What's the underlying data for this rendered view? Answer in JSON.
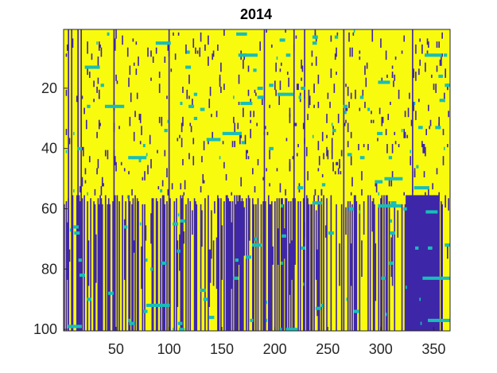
{
  "chart_data": {
    "type": "heatmap",
    "title": "2014",
    "xlabel": "",
    "ylabel": "",
    "xlim": [
      1,
      365
    ],
    "ylim": [
      1,
      100
    ],
    "y_reversed": true,
    "x_ticks": [
      50,
      100,
      150,
      200,
      250,
      300,
      350
    ],
    "y_ticks": [
      20,
      40,
      60,
      80,
      100
    ],
    "x_tick_labels": [
      "50",
      "100",
      "150",
      "200",
      "250",
      "300",
      "350"
    ],
    "y_tick_labels": [
      "20",
      "40",
      "60",
      "80",
      "100"
    ],
    "grid": false,
    "legend": "none",
    "values_encoding": "categorical 0 = dark blue, 1 = cyan, 2 = yellow",
    "colors": {
      "low": "#3e26a8",
      "mid": "#17beb9",
      "high": "#f9fb0e"
    },
    "region_summary": {
      "rows_1_to_56": "mostly yellow with scattered dark-blue columns and short cyan dashes",
      "rows_57_to_100": "dense mixture of dark-blue and yellow vertical stripes with cyan dashes; solid dark-blue block around days 324–355"
    },
    "approx_solid_blue_columns": [
      5,
      8,
      14,
      17,
      48,
      100,
      190,
      218,
      228,
      265,
      330
    ],
    "approx_blue_block": {
      "days": [
        324,
        355
      ],
      "rows": [
        56,
        100
      ]
    }
  }
}
